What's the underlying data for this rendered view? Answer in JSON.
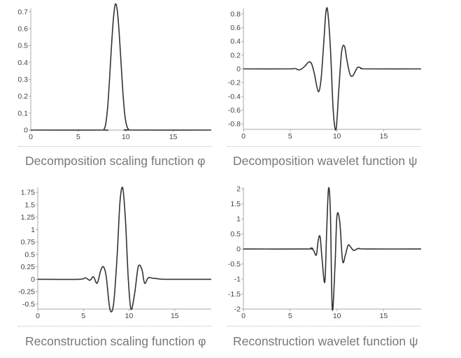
{
  "chart_data": [
    {
      "type": "line",
      "caption": "Decomposition scaling function φ",
      "xlim": [
        0,
        19
      ],
      "ylim": [
        0,
        0.72
      ],
      "xticks": [
        "0",
        "5",
        "10",
        "15"
      ],
      "yticks": [
        "0",
        "0.1",
        "0.2",
        "0.3",
        "0.4",
        "0.5",
        "0.6",
        "0.7"
      ],
      "x": [
        0,
        7.5,
        7.7,
        7.9,
        8.1,
        8.3,
        8.5,
        8.7,
        8.9,
        9.1,
        9.3,
        9.5,
        9.7,
        9.9,
        10.1,
        10.3,
        10.5,
        19
      ],
      "series": [
        {
          "values": [
            0,
            0,
            0.003,
            0.04,
            0.14,
            0.31,
            0.5,
            0.66,
            0.745,
            0.71,
            0.58,
            0.4,
            0.22,
            0.09,
            0.025,
            0.004,
            0,
            0
          ]
        }
      ]
    },
    {
      "type": "line",
      "caption": "Decomposition wavelet function ψ",
      "xlim": [
        0,
        19
      ],
      "ylim": [
        -0.88,
        0.88
      ],
      "xticks": [
        "0",
        "5",
        "10",
        "15"
      ],
      "yticks": [
        "0.8",
        "0.6",
        "0.4",
        "0.2",
        "0",
        "-0.2",
        "-0.4",
        "-0.6",
        "-0.8"
      ],
      "x": [
        0,
        4.8,
        5.5,
        6.0,
        6.5,
        7.0,
        7.3,
        7.6,
        8.0,
        8.3,
        8.6,
        8.8,
        9.0,
        9.3,
        9.6,
        9.9,
        10.2,
        10.5,
        10.8,
        11.1,
        11.4,
        11.7,
        12.2,
        12.6,
        13.2,
        19
      ],
      "series": [
        {
          "values": [
            0,
            0,
            0.005,
            -0.015,
            0.03,
            0.1,
            0.07,
            -0.08,
            -0.33,
            -0.15,
            0.4,
            0.8,
            0.85,
            0.3,
            -0.6,
            -0.88,
            -0.3,
            0.25,
            0.33,
            0.1,
            -0.08,
            -0.1,
            0.02,
            0.01,
            0,
            0
          ]
        }
      ]
    },
    {
      "type": "line",
      "caption": "Reconstruction scaling function φ",
      "xlim": [
        0,
        19
      ],
      "ylim": [
        -0.6,
        1.85
      ],
      "xticks": [
        "0",
        "5",
        "10",
        "15"
      ],
      "yticks": [
        "1.75",
        "1.5",
        "1.25",
        "1",
        "0.75",
        "0.5",
        "0.25",
        "0",
        "-0.25",
        "-0.5"
      ],
      "x": [
        0,
        4.5,
        5.2,
        5.7,
        6.1,
        6.5,
        6.9,
        7.2,
        7.5,
        7.9,
        8.3,
        8.7,
        9.0,
        9.3,
        9.6,
        9.9,
        10.2,
        10.6,
        11.0,
        11.4,
        11.7,
        12.1,
        12.6,
        13.2,
        14,
        19
      ],
      "series": [
        {
          "values": [
            0,
            0,
            0.03,
            -0.02,
            0.05,
            -0.08,
            0.18,
            0.25,
            0.05,
            -0.6,
            -0.5,
            0.5,
            1.55,
            1.84,
            1.2,
            0.05,
            -0.6,
            -0.3,
            0.25,
            0.2,
            -0.08,
            0.03,
            0.02,
            0.01,
            0,
            0
          ]
        }
      ]
    },
    {
      "type": "line",
      "caption": "Reconstruction wavelet function ψ",
      "xlim": [
        0,
        19
      ],
      "ylim": [
        -2,
        2.05
      ],
      "xticks": [
        "0",
        "5",
        "10",
        "15"
      ],
      "yticks": [
        "2",
        "1.5",
        "1",
        "0.5",
        "0",
        "-0.5",
        "-1",
        "-1.5",
        "-2"
      ],
      "x": [
        0,
        6.8,
        7.2,
        7.5,
        7.8,
        8.0,
        8.2,
        8.4,
        8.7,
        8.9,
        9.1,
        9.3,
        9.5,
        9.8,
        10.0,
        10.3,
        10.6,
        10.9,
        11.2,
        11.5,
        11.8,
        12.3,
        13,
        19
      ],
      "series": [
        {
          "values": [
            0,
            0,
            0.03,
            -0.05,
            -0.2,
            0.3,
            0.4,
            -0.3,
            -1.1,
            0.6,
            2.02,
            1.2,
            -2.0,
            -0.5,
            1.1,
            0.9,
            -0.4,
            -0.2,
            0.13,
            0.05,
            -0.05,
            0.02,
            0,
            0
          ]
        }
      ]
    }
  ]
}
